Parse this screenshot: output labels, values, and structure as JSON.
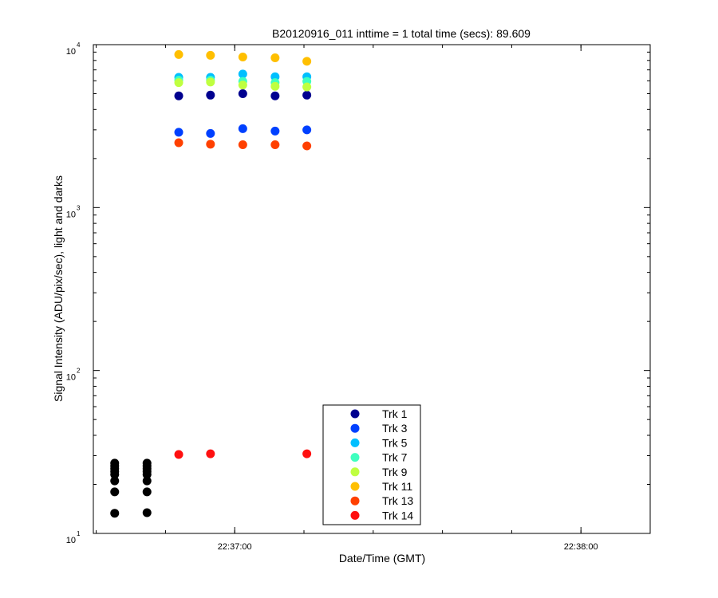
{
  "chart_data": {
    "type": "scatter",
    "title": "B20120916_011 inttime = 1 total time (secs): 89.609",
    "xlabel": "Date/Time (GMT)",
    "ylabel": "Signal Intensity (ADU/pix/sec), light and darks",
    "yscale": "log",
    "ylim": [
      10,
      10000
    ],
    "xlim": [
      "22:36:35.5",
      "22:38:12"
    ],
    "x_ticks": [
      "22:37:00",
      "22:38:00"
    ],
    "y_ticks": [
      {
        "value": 10,
        "base": "10",
        "exp": "1"
      },
      {
        "value": 100,
        "base": "10",
        "exp": "2"
      },
      {
        "value": 1000,
        "base": "10",
        "exp": "3"
      },
      {
        "value": 10000,
        "base": "10",
        "exp": "4"
      }
    ],
    "legend_position": "bottom-center",
    "grid": false,
    "series": [
      {
        "name": "Trk 1",
        "color": "#00008f",
        "points": [
          [
            "22:36:50.3",
            4850
          ],
          [
            "22:36:55.8",
            4900
          ],
          [
            "22:37:01.4",
            5000
          ],
          [
            "22:37:07.0",
            4850
          ],
          [
            "22:37:12.5",
            4900
          ]
        ]
      },
      {
        "name": "Trk 3",
        "color": "#0040ff",
        "points": [
          [
            "22:36:50.3",
            2900
          ],
          [
            "22:36:55.8",
            2850
          ],
          [
            "22:37:01.4",
            3050
          ],
          [
            "22:37:07.0",
            2950
          ],
          [
            "22:37:12.5",
            3000
          ]
        ]
      },
      {
        "name": "Trk 5",
        "color": "#00bfff",
        "points": [
          [
            "22:36:50.3",
            6300
          ],
          [
            "22:36:55.8",
            6300
          ],
          [
            "22:37:01.4",
            6600
          ],
          [
            "22:37:07.0",
            6350
          ],
          [
            "22:37:12.5",
            6350
          ]
        ]
      },
      {
        "name": "Trk 7",
        "color": "#40ffbf",
        "points": [
          [
            "22:36:50.3",
            6050
          ],
          [
            "22:36:55.8",
            6050
          ],
          [
            "22:37:01.4",
            5950
          ],
          [
            "22:37:07.0",
            5850
          ],
          [
            "22:37:12.5",
            5950
          ]
        ]
      },
      {
        "name": "Trk 9",
        "color": "#bfff40",
        "points": [
          [
            "22:36:50.3",
            5850
          ],
          [
            "22:36:55.8",
            5900
          ],
          [
            "22:37:01.4",
            5650
          ],
          [
            "22:37:07.0",
            5550
          ],
          [
            "22:37:12.5",
            5500
          ]
        ]
      },
      {
        "name": "Trk 11",
        "color": "#ffbf00",
        "points": [
          [
            "22:36:50.3",
            8700
          ],
          [
            "22:36:55.8",
            8600
          ],
          [
            "22:37:01.4",
            8400
          ],
          [
            "22:37:07.0",
            8300
          ],
          [
            "22:37:12.5",
            7900
          ]
        ]
      },
      {
        "name": "Trk 13",
        "color": "#ff4000",
        "points": [
          [
            "22:36:50.3",
            2500
          ],
          [
            "22:36:55.8",
            2450
          ],
          [
            "22:37:01.4",
            2430
          ],
          [
            "22:37:07.0",
            2430
          ],
          [
            "22:37:12.5",
            2390
          ]
        ]
      },
      {
        "name": "Trk 14",
        "color": "#ff1010",
        "points": [
          [
            "22:36:50.3",
            30.5
          ],
          [
            "22:36:55.8",
            30.8
          ],
          [
            "22:37:12.5",
            30.8
          ]
        ]
      },
      {
        "name": "",
        "color": "#000000",
        "points": [
          [
            "22:36:39.2",
            27
          ],
          [
            "22:36:39.2",
            26
          ],
          [
            "22:36:39.2",
            25
          ],
          [
            "22:36:39.2",
            24
          ],
          [
            "22:36:39.2",
            23
          ],
          [
            "22:36:39.2",
            21
          ],
          [
            "22:36:39.2",
            18
          ],
          [
            "22:36:39.2",
            13.3
          ],
          [
            "22:36:44.8",
            27
          ],
          [
            "22:36:44.8",
            26
          ],
          [
            "22:36:44.8",
            25
          ],
          [
            "22:36:44.8",
            24
          ],
          [
            "22:36:44.8",
            23
          ],
          [
            "22:36:44.8",
            21
          ],
          [
            "22:36:44.8",
            18
          ],
          [
            "22:36:44.8",
            13.4
          ],
          [
            "22:37:18.1",
            27.5
          ],
          [
            "22:37:18.1",
            26.5
          ],
          [
            "22:37:18.1",
            25
          ],
          [
            "22:37:18.1",
            24
          ],
          [
            "22:37:18.1",
            23
          ],
          [
            "22:37:18.1",
            21
          ],
          [
            "22:37:18.1",
            18.5
          ],
          [
            "22:37:18.1",
            13.5
          ],
          [
            "22:37:23.6",
            28
          ],
          [
            "22:37:23.6",
            26.5
          ],
          [
            "22:37:23.6",
            25
          ],
          [
            "22:37:23.6",
            24
          ],
          [
            "22:37:23.6",
            22
          ],
          [
            "22:37:23.6",
            19
          ],
          [
            "22:37:23.6",
            14
          ]
        ]
      }
    ]
  }
}
